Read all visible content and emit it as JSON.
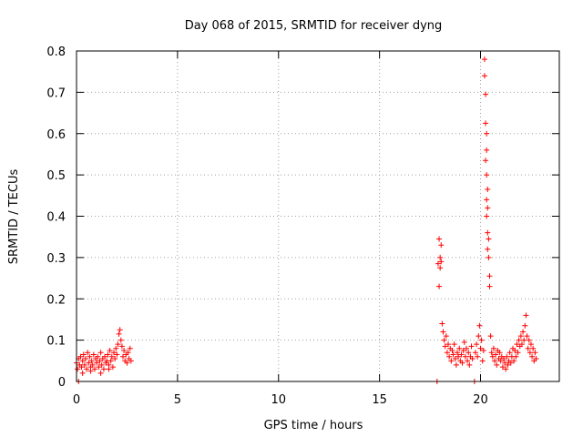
{
  "chart_data": {
    "type": "scatter",
    "title": "Day 068 of 2015, SRMTID for receiver dyng",
    "xlabel": "GPS time / hours",
    "ylabel": "SRMTID / TECUs",
    "xlim": [
      0,
      23.9
    ],
    "ylim": [
      0,
      0.8
    ],
    "xticks": [
      0,
      5,
      10,
      15,
      20
    ],
    "xtick_labels": [
      "0",
      "5",
      "10",
      "15",
      "20"
    ],
    "yticks": [
      0,
      0.1,
      0.2,
      0.3,
      0.4,
      0.5,
      0.6,
      0.7,
      0.8
    ],
    "ytick_labels": [
      "0",
      "0.1",
      "0.2",
      "0.3",
      "0.4",
      "0.5",
      "0.6",
      "0.7",
      "0.8"
    ],
    "grid": true,
    "marker": "+",
    "series": [
      {
        "name": "SRMTID",
        "color": "#ff0000",
        "points": [
          [
            0.0,
            0.045
          ],
          [
            0.05,
            0.03
          ],
          [
            0.1,
            0.055
          ],
          [
            0.15,
            0.04
          ],
          [
            0.2,
            0.06
          ],
          [
            0.25,
            0.035
          ],
          [
            0.3,
            0.05
          ],
          [
            0.35,
            0.065
          ],
          [
            0.4,
            0.04
          ],
          [
            0.45,
            0.055
          ],
          [
            0.5,
            0.03
          ],
          [
            0.55,
            0.07
          ],
          [
            0.6,
            0.045
          ],
          [
            0.65,
            0.06
          ],
          [
            0.7,
            0.035
          ],
          [
            0.75,
            0.05
          ],
          [
            0.8,
            0.04
          ],
          [
            0.85,
            0.065
          ],
          [
            0.9,
            0.03
          ],
          [
            0.95,
            0.055
          ],
          [
            1.0,
            0.045
          ],
          [
            1.05,
            0.06
          ],
          [
            1.1,
            0.035
          ],
          [
            1.15,
            0.05
          ],
          [
            1.2,
            0.07
          ],
          [
            1.25,
            0.04
          ],
          [
            1.3,
            0.055
          ],
          [
            1.35,
            0.03
          ],
          [
            1.4,
            0.06
          ],
          [
            1.45,
            0.045
          ],
          [
            1.5,
            0.05
          ],
          [
            1.55,
            0.065
          ],
          [
            1.6,
            0.04
          ],
          [
            1.65,
            0.075
          ],
          [
            1.7,
            0.05
          ],
          [
            1.75,
            0.06
          ],
          [
            1.8,
            0.035
          ],
          [
            1.85,
            0.07
          ],
          [
            1.9,
            0.055
          ],
          [
            1.95,
            0.08
          ],
          [
            2.0,
            0.065
          ],
          [
            2.05,
            0.09
          ],
          [
            2.1,
            0.115
          ],
          [
            2.15,
            0.125
          ],
          [
            2.2,
            0.1
          ],
          [
            2.25,
            0.085
          ],
          [
            2.3,
            0.06
          ],
          [
            2.35,
            0.075
          ],
          [
            2.4,
            0.05
          ],
          [
            2.45,
            0.065
          ],
          [
            2.5,
            0.045
          ],
          [
            2.55,
            0.07
          ],
          [
            2.6,
            0.055
          ],
          [
            2.65,
            0.08
          ],
          [
            2.7,
            0.05
          ],
          [
            0.3,
            0.02
          ],
          [
            0.7,
            0.025
          ],
          [
            1.2,
            0.02
          ],
          [
            0.1,
            0.0
          ],
          [
            1.6,
            0.03
          ],
          [
            17.85,
            0.0
          ],
          [
            17.9,
            0.285
          ],
          [
            17.95,
            0.345
          ],
          [
            18.0,
            0.3
          ],
          [
            18.05,
            0.33
          ],
          [
            18.0,
            0.275
          ],
          [
            17.95,
            0.23
          ],
          [
            18.05,
            0.29
          ],
          [
            18.1,
            0.14
          ],
          [
            18.15,
            0.12
          ],
          [
            18.2,
            0.1
          ],
          [
            18.25,
            0.085
          ],
          [
            18.3,
            0.11
          ],
          [
            18.35,
            0.07
          ],
          [
            18.4,
            0.09
          ],
          [
            18.45,
            0.06
          ],
          [
            18.5,
            0.08
          ],
          [
            18.55,
            0.05
          ],
          [
            18.6,
            0.075
          ],
          [
            18.65,
            0.065
          ],
          [
            18.7,
            0.09
          ],
          [
            18.75,
            0.055
          ],
          [
            18.8,
            0.04
          ],
          [
            18.85,
            0.07
          ],
          [
            18.9,
            0.06
          ],
          [
            18.95,
            0.08
          ],
          [
            19.0,
            0.05
          ],
          [
            19.05,
            0.065
          ],
          [
            19.1,
            0.045
          ],
          [
            19.15,
            0.075
          ],
          [
            19.2,
            0.095
          ],
          [
            19.25,
            0.06
          ],
          [
            19.3,
            0.08
          ],
          [
            19.35,
            0.05
          ],
          [
            19.4,
            0.07
          ],
          [
            19.45,
            0.04
          ],
          [
            19.5,
            0.06
          ],
          [
            19.55,
            0.085
          ],
          [
            19.6,
            0.055
          ],
          [
            19.7,
            0.0
          ],
          [
            19.75,
            0.07
          ],
          [
            19.8,
            0.09
          ],
          [
            19.85,
            0.06
          ],
          [
            19.9,
            0.11
          ],
          [
            19.95,
            0.135
          ],
          [
            20.0,
            0.08
          ],
          [
            20.05,
            0.1
          ],
          [
            20.1,
            0.05
          ],
          [
            20.15,
            0.075
          ],
          [
            20.2,
            0.78
          ],
          [
            20.2,
            0.74
          ],
          [
            20.25,
            0.695
          ],
          [
            20.25,
            0.625
          ],
          [
            20.3,
            0.6
          ],
          [
            20.3,
            0.56
          ],
          [
            20.25,
            0.535
          ],
          [
            20.3,
            0.5
          ],
          [
            20.35,
            0.465
          ],
          [
            20.3,
            0.44
          ],
          [
            20.35,
            0.42
          ],
          [
            20.3,
            0.4
          ],
          [
            20.35,
            0.36
          ],
          [
            20.4,
            0.345
          ],
          [
            20.35,
            0.32
          ],
          [
            20.4,
            0.3
          ],
          [
            20.45,
            0.255
          ],
          [
            20.45,
            0.23
          ],
          [
            20.5,
            0.11
          ],
          [
            20.55,
            0.07
          ],
          [
            20.6,
            0.06
          ],
          [
            20.65,
            0.08
          ],
          [
            20.7,
            0.05
          ],
          [
            20.75,
            0.065
          ],
          [
            20.8,
            0.04
          ],
          [
            20.85,
            0.075
          ],
          [
            20.9,
            0.055
          ],
          [
            20.95,
            0.07
          ],
          [
            21.0,
            0.05
          ],
          [
            21.05,
            0.06
          ],
          [
            21.1,
            0.035
          ],
          [
            21.15,
            0.055
          ],
          [
            21.2,
            0.045
          ],
          [
            21.25,
            0.03
          ],
          [
            21.3,
            0.06
          ],
          [
            21.35,
            0.04
          ],
          [
            21.4,
            0.05
          ],
          [
            21.45,
            0.07
          ],
          [
            21.5,
            0.045
          ],
          [
            21.55,
            0.06
          ],
          [
            21.6,
            0.08
          ],
          [
            21.65,
            0.05
          ],
          [
            21.7,
            0.075
          ],
          [
            21.75,
            0.06
          ],
          [
            21.8,
            0.09
          ],
          [
            21.85,
            0.07
          ],
          [
            21.9,
            0.1
          ],
          [
            21.95,
            0.085
          ],
          [
            22.0,
            0.11
          ],
          [
            22.05,
            0.09
          ],
          [
            22.1,
            0.12
          ],
          [
            22.15,
            0.1
          ],
          [
            22.2,
            0.135
          ],
          [
            22.25,
            0.16
          ],
          [
            22.3,
            0.11
          ],
          [
            22.35,
            0.08
          ],
          [
            22.4,
            0.1
          ],
          [
            22.45,
            0.07
          ],
          [
            22.5,
            0.09
          ],
          [
            22.55,
            0.06
          ],
          [
            22.6,
            0.08
          ],
          [
            22.65,
            0.05
          ],
          [
            22.7,
            0.07
          ],
          [
            22.75,
            0.055
          ]
        ]
      }
    ]
  }
}
